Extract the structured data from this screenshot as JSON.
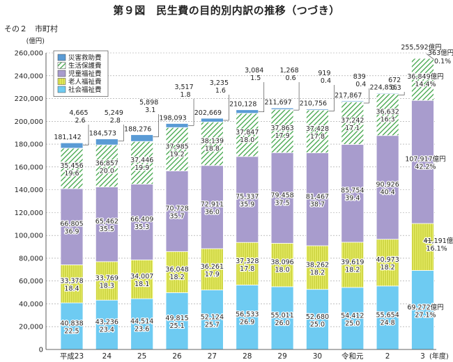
{
  "title": "第９図　民生費の目的別内訳の推移（つづき）",
  "subtitle": "その２　市町村",
  "chart_data": {
    "type": "bar",
    "stacked": true,
    "ylabel": "(億円)",
    "xlabel": "(年度)",
    "ylim": [
      0,
      260000
    ],
    "yticks": [
      0,
      20000,
      40000,
      60000,
      80000,
      100000,
      120000,
      140000,
      160000,
      180000,
      200000,
      220000,
      240000,
      260000
    ],
    "ytick_labels": [
      "0",
      "20,000",
      "40,000",
      "60,000",
      "80,000",
      "100,000",
      "120,000",
      "140,000",
      "160,000",
      "180,000",
      "200,000",
      "220,000",
      "240,000",
      "260,000"
    ],
    "grid": true,
    "legend_position": "top-left",
    "categories": [
      "平成23",
      "24",
      "25",
      "26",
      "27",
      "28",
      "29",
      "30",
      "令和元",
      "2",
      "3"
    ],
    "series": [
      {
        "name": "社会福祉費",
        "color": "#6ecbf2",
        "pattern": "solid",
        "values": [
          40838,
          43236,
          44514,
          49815,
          52124,
          56533,
          55011,
          52680,
          54412,
          55654,
          69272
        ],
        "labels": [
          "40,838",
          "43,236",
          "44,514",
          "49,815",
          "52,124",
          "56,533",
          "55,011",
          "52,680",
          "54,412",
          "55,654",
          "69,272億円"
        ],
        "pct_labels": [
          "22.5",
          "23.4",
          "23.6",
          "25.1",
          "25.7",
          "26.9",
          "26.0",
          "25.0",
          "25.0",
          "24.8",
          "27.1%"
        ]
      },
      {
        "name": "老人福祉費",
        "color": "#e2ea5a",
        "pattern": "hatch-vertical",
        "values": [
          33378,
          33769,
          34007,
          36048,
          36261,
          37328,
          38096,
          38262,
          39619,
          40973,
          41191
        ],
        "labels": [
          "33,378",
          "33,769",
          "34,007",
          "36,048",
          "36,261",
          "37,328",
          "38,096",
          "38,262",
          "39,619",
          "40,973",
          "41,191億円"
        ],
        "pct_labels": [
          "18.4",
          "18.3",
          "18.1",
          "18.2",
          "17.9",
          "17.8",
          "18.0",
          "18.2",
          "18.2",
          "18.2",
          "16.1%"
        ]
      },
      {
        "name": "児童福祉費",
        "color": "#a89ccd",
        "pattern": "solid",
        "values": [
          66805,
          65462,
          66409,
          70728,
          72911,
          75337,
          79458,
          81467,
          85754,
          90926,
          107917
        ],
        "labels": [
          "66,805",
          "65,462",
          "66,409",
          "70,728",
          "72,911",
          "75,337",
          "79,458",
          "81,467",
          "85,754",
          "90,926",
          "107,917億円"
        ],
        "pct_labels": [
          "36.9",
          "35.5",
          "35.3",
          "35.7",
          "36.0",
          "35.9",
          "37.5",
          "38.7",
          "39.4",
          "40.4",
          "42.2%"
        ]
      },
      {
        "name": "生活保護費",
        "color": "#7dcc7f",
        "pattern": "hatch-diagonal",
        "values": [
          35456,
          36857,
          37446,
          37985,
          38139,
          37847,
          37863,
          37428,
          37242,
          36632,
          36849
        ],
        "labels": [
          "35,456",
          "36,857",
          "37,446",
          "37,985",
          "38,139",
          "37,847",
          "37,863",
          "37,428",
          "37,242",
          "36,632",
          "36,849億円"
        ],
        "pct_labels": [
          "19.6",
          "20.0",
          "19.9",
          "19.2",
          "18.8",
          "18.0",
          "17.9",
          "17.8",
          "17.1",
          "16.3",
          "14.4%"
        ]
      },
      {
        "name": "災害救助費",
        "color": "#5a9bd5",
        "pattern": "solid",
        "values": [
          4665,
          5249,
          5898,
          3517,
          3235,
          3084,
          1268,
          919,
          839,
          672,
          363
        ],
        "labels": [
          "4,665",
          "5,249",
          "5,898",
          "3,517",
          "3,235",
          "3,084",
          "1,268",
          "919",
          "839",
          "672",
          "363億円"
        ],
        "pct_labels": [
          "2.6",
          "2.8",
          "3.1",
          "1.8",
          "1.6",
          "1.5",
          "0.6",
          "0.4",
          "0.4",
          "0.3",
          "0.1%"
        ]
      }
    ],
    "totals": [
      181142,
      184573,
      188276,
      198093,
      202669,
      210128,
      211697,
      210756,
      217867,
      224856,
      255592
    ],
    "total_labels": [
      "181,142",
      "184,573",
      "188,276",
      "198,093",
      "202,669",
      "210,128",
      "211,697",
      "210,756",
      "217,867",
      "224,856",
      "255,592億円"
    ],
    "legend_order": [
      "災害救助費",
      "生活保護費",
      "児童福祉費",
      "老人福祉費",
      "社会福祉費"
    ]
  }
}
